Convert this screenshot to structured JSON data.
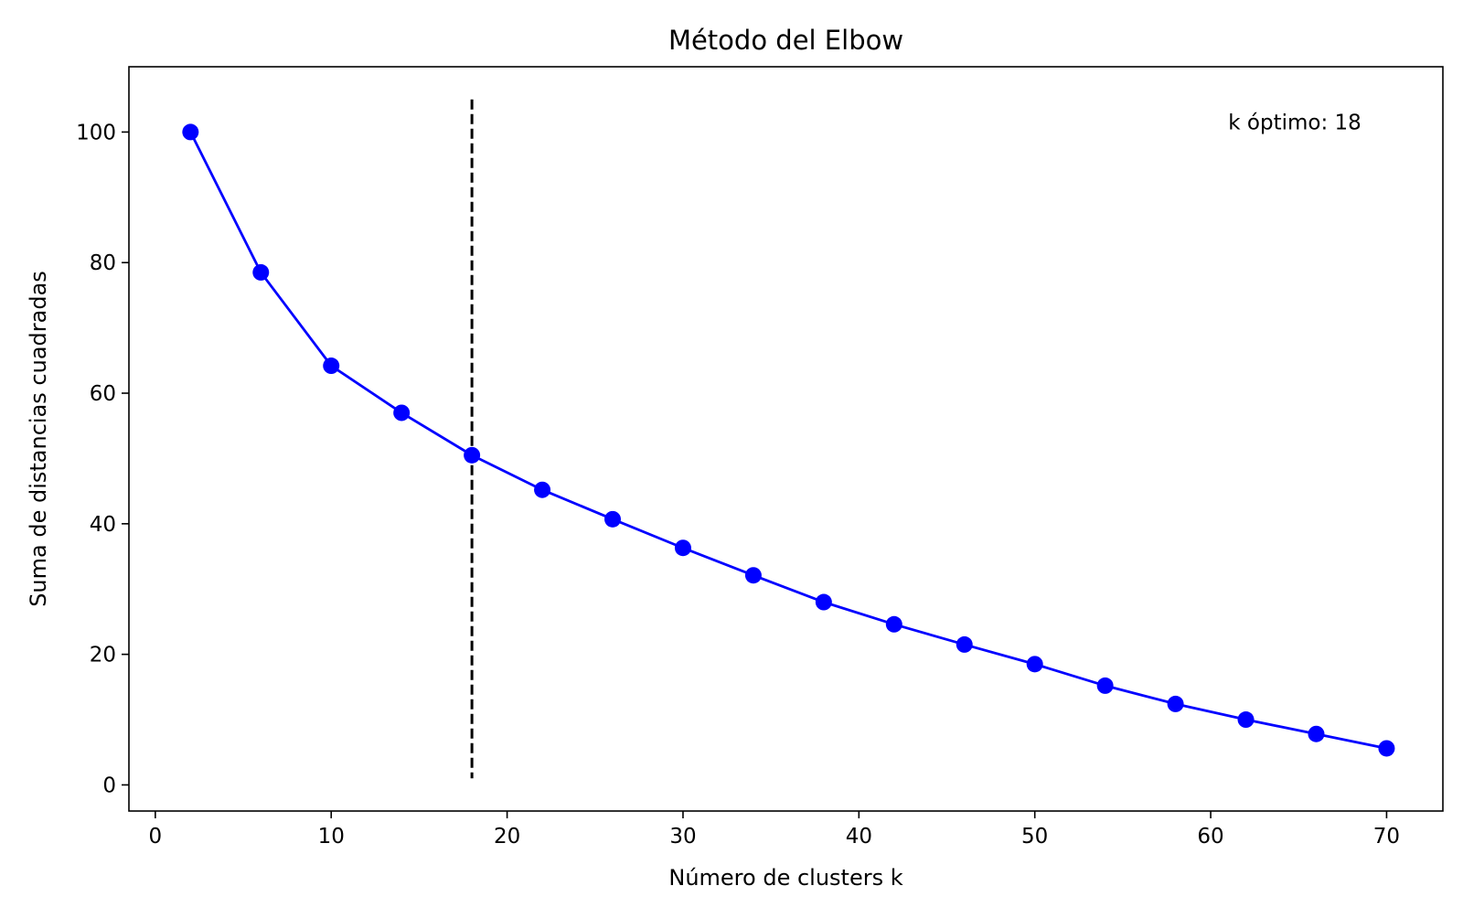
{
  "chart_data": {
    "type": "line",
    "title": "Método del Elbow",
    "xlabel": "Número de clusters k",
    "ylabel": "Suma de distancias cuadradas",
    "xlim": [
      -1.5,
      73.2
    ],
    "ylim": [
      -4,
      110
    ],
    "x_ticks": [
      0,
      10,
      20,
      30,
      40,
      50,
      60,
      70
    ],
    "y_ticks": [
      0,
      20,
      40,
      60,
      80,
      100
    ],
    "grid": false,
    "series": [
      {
        "x": [
          2,
          6,
          10,
          14,
          18,
          22,
          26,
          30,
          34,
          38,
          42,
          46,
          50,
          54,
          58,
          62,
          66,
          70
        ],
        "values": [
          100,
          78.5,
          64.2,
          57.0,
          50.5,
          45.2,
          40.7,
          36.3,
          32.1,
          28.0,
          24.6,
          21.5,
          18.5,
          15.2,
          12.4,
          10.0,
          7.8,
          5.6
        ],
        "color": "#0000ff",
        "marker": "circle"
      }
    ],
    "vline": {
      "x": 18,
      "ymin": 1,
      "ymax": 105,
      "color": "#000000",
      "style": "dashed"
    },
    "annotation": {
      "text": "k óptimo: 18",
      "x": 61,
      "y": 101.5
    }
  }
}
